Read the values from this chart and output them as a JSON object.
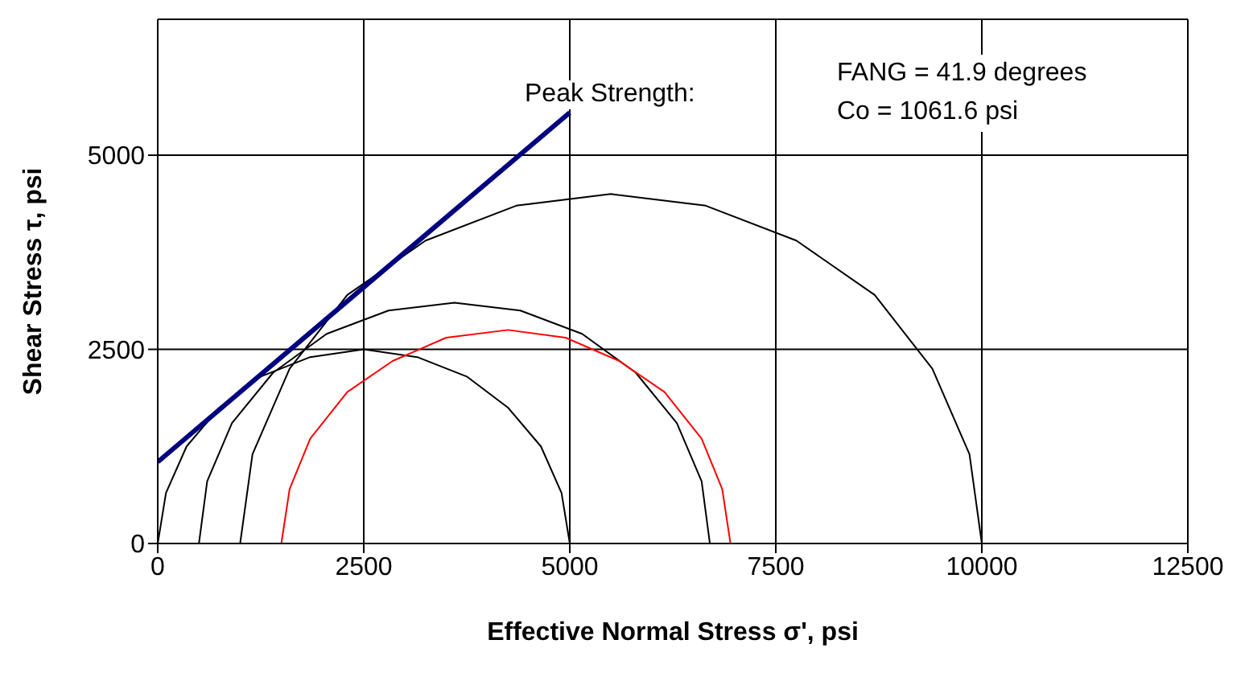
{
  "chart_data": {
    "type": "line",
    "xlabel": "Effective Normal Stress σ', psi",
    "ylabel": "Shear Stress τ, psi",
    "xlim": [
      0,
      12500
    ],
    "xticks": [
      0,
      2500,
      5000,
      7500,
      10000,
      12500
    ],
    "ylim": [
      0,
      6750
    ],
    "yticks": [
      0,
      2500,
      5000
    ],
    "grid": true,
    "marker": "none",
    "line_style": "solid",
    "annotations": [
      "Peak Strength:",
      "FANG = 41.9 degrees",
      "Co = 1061.6 psi"
    ],
    "series": [
      {
        "color": "#000000",
        "x": [
          0,
          100,
          350,
          750,
          1250,
          1850,
          2500,
          3150,
          3750,
          4250,
          4650,
          4900,
          5000
        ],
        "values": [
          0,
          650,
          1250,
          1750,
          2150,
          2400,
          2500,
          2400,
          2150,
          1750,
          1250,
          650,
          0
        ]
      },
      {
        "color": "#000000",
        "x": [
          500,
          600,
          900,
          1400,
          2050,
          2800,
          3600,
          4400,
          5150,
          5800,
          6300,
          6600,
          6700
        ],
        "values": [
          0,
          800,
          1550,
          2200,
          2700,
          3000,
          3100,
          3000,
          2700,
          2200,
          1550,
          800,
          0
        ]
      },
      {
        "color": "#000000",
        "x": [
          1000,
          1150,
          1600,
          2300,
          3250,
          4350,
          5500,
          6650,
          7750,
          8700,
          9400,
          9850,
          10000
        ],
        "values": [
          0,
          1150,
          2250,
          3200,
          3900,
          4350,
          4500,
          4350,
          3900,
          3200,
          2250,
          1150,
          0
        ]
      },
      {
        "color": "#ff0000",
        "x": [
          1500,
          1600,
          1850,
          2300,
          2850,
          3500,
          4250,
          4950,
          5600,
          6150,
          6600,
          6850,
          6950
        ],
        "values": [
          0,
          700,
          1350,
          1950,
          2350,
          2650,
          2750,
          2650,
          2350,
          1950,
          1350,
          700,
          0
        ]
      },
      {
        "color": "#000080",
        "x": [
          0,
          5000
        ],
        "values": [
          1050,
          5550
        ]
      }
    ]
  }
}
